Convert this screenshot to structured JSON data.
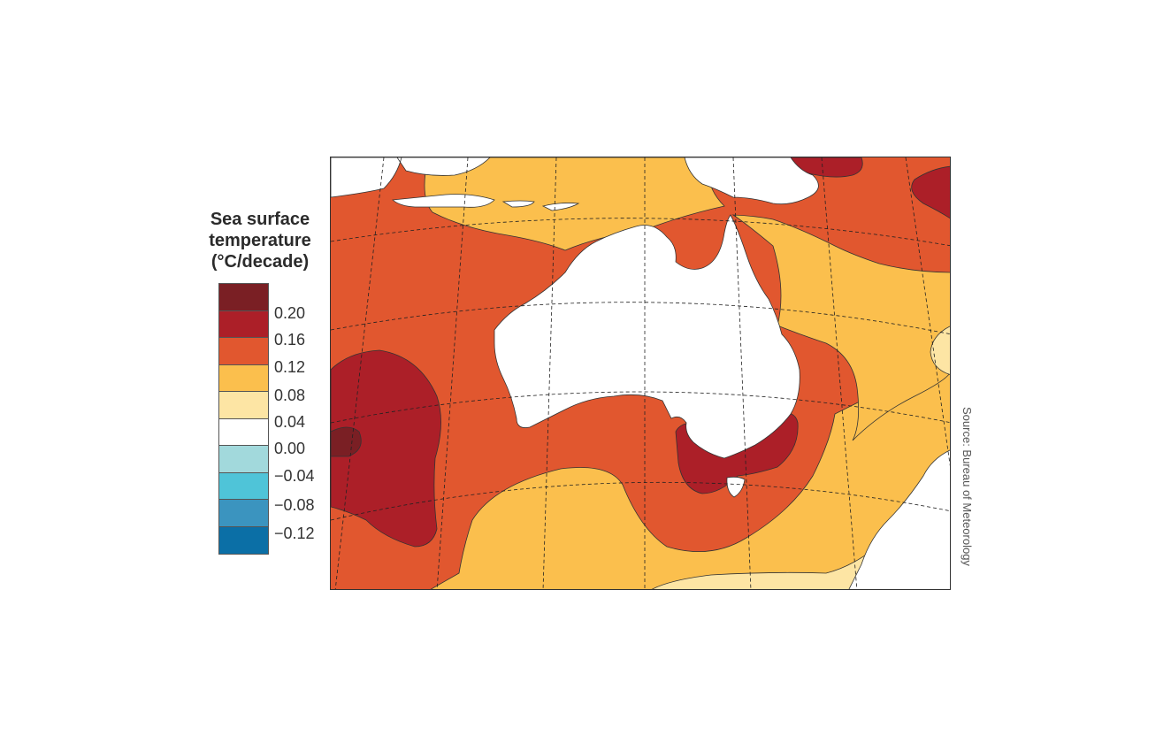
{
  "legend": {
    "title_lines": [
      "Sea surface",
      "temperature",
      "(°C/decade)"
    ],
    "colors": [
      "#7a1f24",
      "#ac1f28",
      "#e1572f",
      "#fbbf4d",
      "#fde5a4",
      "#ffffff",
      "#a2d9dc",
      "#4fc4d8",
      "#3b94bf",
      "#0b6fa6"
    ],
    "ticks": [
      "0.20",
      "0.16",
      "0.12",
      "0.08",
      "0.04",
      "0.00",
      "−0.04",
      "−0.08",
      "−0.12"
    ]
  },
  "map": {
    "land_color": "#ffffff",
    "graticule": "dashed"
  },
  "source": "Source: Bureau of Meteorology"
}
